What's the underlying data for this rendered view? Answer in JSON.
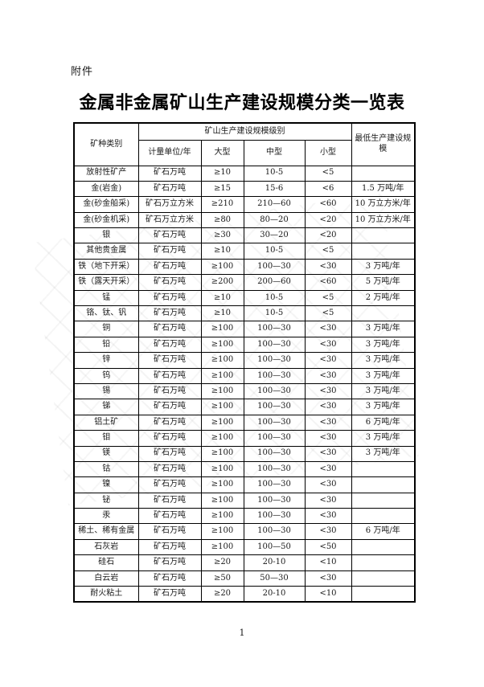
{
  "page": {
    "attachment_label": "附件",
    "title": "金属非金属矿山生产建设规模分类一览表",
    "page_number": "1"
  },
  "colors": {
    "text": "#1a1a1a",
    "border": "#000000",
    "background": "#ffffff",
    "watermark": "#d9d9d9"
  },
  "table": {
    "header": {
      "col_category": "矿种类别",
      "group_scale": "矿山生产建设规模级别",
      "col_unit": "计量单位/年",
      "col_large": "大型",
      "col_medium": "中型",
      "col_small": "小型",
      "col_min_scale": "最低生产建设规模"
    },
    "rows": [
      {
        "category": "放射性矿产",
        "unit": "矿石万吨",
        "large": "≥10",
        "medium": "10-5",
        "small": "<5",
        "min": ""
      },
      {
        "category": "金(岩金)",
        "unit": "矿石万吨",
        "large": "≥15",
        "medium": "15-6",
        "small": "<6",
        "min": "1.5 万吨/年"
      },
      {
        "category": "金(砂金船采)",
        "unit": "矿石万立方米",
        "large": "≥210",
        "medium": "210—60",
        "small": "<60",
        "min": "10 万立方米/年"
      },
      {
        "category": "金(砂金机采)",
        "unit": "矿石万立方米",
        "large": "≥80",
        "medium": "80—20",
        "small": "<20",
        "min": "10 万立方米/年"
      },
      {
        "category": "银",
        "unit": "矿石万吨",
        "large": "≥30",
        "medium": "30—20",
        "small": "<20",
        "min": ""
      },
      {
        "category": "其他贵金属",
        "unit": "矿石万吨",
        "large": "≥10",
        "medium": "10-5",
        "small": "<5",
        "min": ""
      },
      {
        "category": "铁（地下开采）",
        "unit": "矿石万吨",
        "large": "≥100",
        "medium": "100—30",
        "small": "<30",
        "min": "3 万吨/年"
      },
      {
        "category": "铁（露天开采）",
        "unit": "矿石万吨",
        "large": "≥200",
        "medium": "200—60",
        "small": "<60",
        "min": "5 万吨/年"
      },
      {
        "category": "锰",
        "unit": "矿石万吨",
        "large": "≥10",
        "medium": "10-5",
        "small": "<5",
        "min": "2 万吨/年"
      },
      {
        "category": "铬、钛、钒",
        "unit": "矿石万吨",
        "large": "≥10",
        "medium": "10-5",
        "small": "<5",
        "min": ""
      },
      {
        "category": "铜",
        "unit": "矿石万吨",
        "large": "≥100",
        "medium": "100—30",
        "small": "<30",
        "min": "3 万吨/年"
      },
      {
        "category": "铅",
        "unit": "矿石万吨",
        "large": "≥100",
        "medium": "100—30",
        "small": "<30",
        "min": "3 万吨/年"
      },
      {
        "category": "锌",
        "unit": "矿石万吨",
        "large": "≥100",
        "medium": "100—30",
        "small": "<30",
        "min": "3 万吨/年"
      },
      {
        "category": "钨",
        "unit": "矿石万吨",
        "large": "≥100",
        "medium": "100—30",
        "small": "<30",
        "min": "3 万吨/年"
      },
      {
        "category": "锡",
        "unit": "矿石万吨",
        "large": "≥100",
        "medium": "100—30",
        "small": "<30",
        "min": "3 万吨/年"
      },
      {
        "category": "锑",
        "unit": "矿石万吨",
        "large": "≥100",
        "medium": "100—30",
        "small": "<30",
        "min": "3 万吨/年"
      },
      {
        "category": "铝土矿",
        "unit": "矿石万吨",
        "large": "≥100",
        "medium": "100—30",
        "small": "<30",
        "min": "6 万吨/年"
      },
      {
        "category": "钼",
        "unit": "矿石万吨",
        "large": "≥100",
        "medium": "100—30",
        "small": "<30",
        "min": "3 万吨/年"
      },
      {
        "category": "镁",
        "unit": "矿石万吨",
        "large": "≥100",
        "medium": "100—30",
        "small": "<30",
        "min": "3 万吨/年"
      },
      {
        "category": "钴",
        "unit": "矿石万吨",
        "large": "≥100",
        "medium": "100—30",
        "small": "<30",
        "min": ""
      },
      {
        "category": "镍",
        "unit": "矿石万吨",
        "large": "≥100",
        "medium": "100—30",
        "small": "<30",
        "min": ""
      },
      {
        "category": "铋",
        "unit": "矿石万吨",
        "large": "≥100",
        "medium": "100—30",
        "small": "<30",
        "min": ""
      },
      {
        "category": "汞",
        "unit": "矿石万吨",
        "large": "≥100",
        "medium": "100—30",
        "small": "<30",
        "min": ""
      },
      {
        "category": "稀土、稀有金属",
        "unit": "矿石万吨",
        "large": "≥100",
        "medium": "100—30",
        "small": "<30",
        "min": "6 万吨/年"
      },
      {
        "category": "石灰岩",
        "unit": "矿石万吨",
        "large": "≥100",
        "medium": "100—50",
        "small": "<50",
        "min": ""
      },
      {
        "category": "硅石",
        "unit": "矿石万吨",
        "large": "≥20",
        "medium": "20-10",
        "small": "<10",
        "min": ""
      },
      {
        "category": "白云岩",
        "unit": "矿石万吨",
        "large": "≥50",
        "medium": "50—30",
        "small": "<30",
        "min": ""
      },
      {
        "category": "耐火粘土",
        "unit": "矿石万吨",
        "large": "≥20",
        "medium": "20-10",
        "small": "<10",
        "min": ""
      }
    ]
  }
}
